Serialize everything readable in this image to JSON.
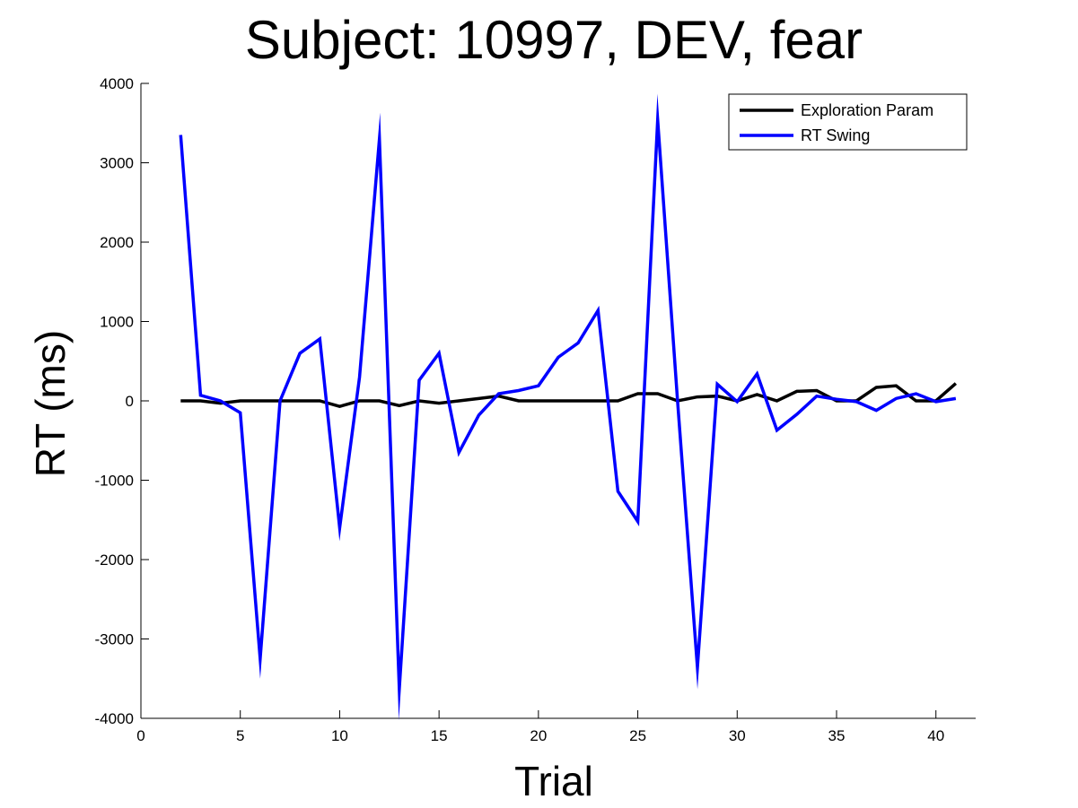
{
  "chart_data": {
    "type": "line",
    "title": "Subject: 10997, DEV, fear",
    "xlabel": "Trial",
    "ylabel": "RT (ms)",
    "xlim": [
      0,
      42
    ],
    "ylim": [
      -4000,
      4000
    ],
    "xticks": [
      0,
      5,
      10,
      15,
      20,
      25,
      30,
      35,
      40
    ],
    "yticks": [
      -4000,
      -3000,
      -2000,
      -1000,
      0,
      1000,
      2000,
      3000,
      4000
    ],
    "grid": false,
    "legend": "top-right",
    "x": [
      2,
      3,
      4,
      5,
      6,
      7,
      8,
      9,
      10,
      11,
      12,
      13,
      14,
      15,
      16,
      17,
      18,
      19,
      20,
      21,
      22,
      23,
      24,
      25,
      26,
      27,
      28,
      29,
      30,
      31,
      32,
      33,
      34,
      35,
      36,
      37,
      38,
      39,
      40,
      41
    ],
    "series": [
      {
        "name": "Exploration Param",
        "color": "#000000",
        "values": [
          0,
          0,
          -30,
          0,
          0,
          0,
          0,
          0,
          -70,
          0,
          0,
          -60,
          0,
          -30,
          0,
          30,
          60,
          0,
          0,
          0,
          0,
          0,
          0,
          90,
          90,
          0,
          50,
          60,
          0,
          80,
          0,
          120,
          130,
          0,
          0,
          170,
          190,
          0,
          0,
          220
        ]
      },
      {
        "name": "RT Swing",
        "color": "#0000ff",
        "values": [
          3350,
          70,
          0,
          -150,
          -3250,
          0,
          600,
          780,
          -1600,
          300,
          3300,
          -3630,
          260,
          600,
          -650,
          -180,
          90,
          130,
          190,
          550,
          730,
          1140,
          -1140,
          -1520,
          3540,
          0,
          -3360,
          210,
          -10,
          340,
          -370,
          -170,
          60,
          20,
          -10,
          -120,
          30,
          90,
          -10,
          30
        ]
      }
    ]
  }
}
